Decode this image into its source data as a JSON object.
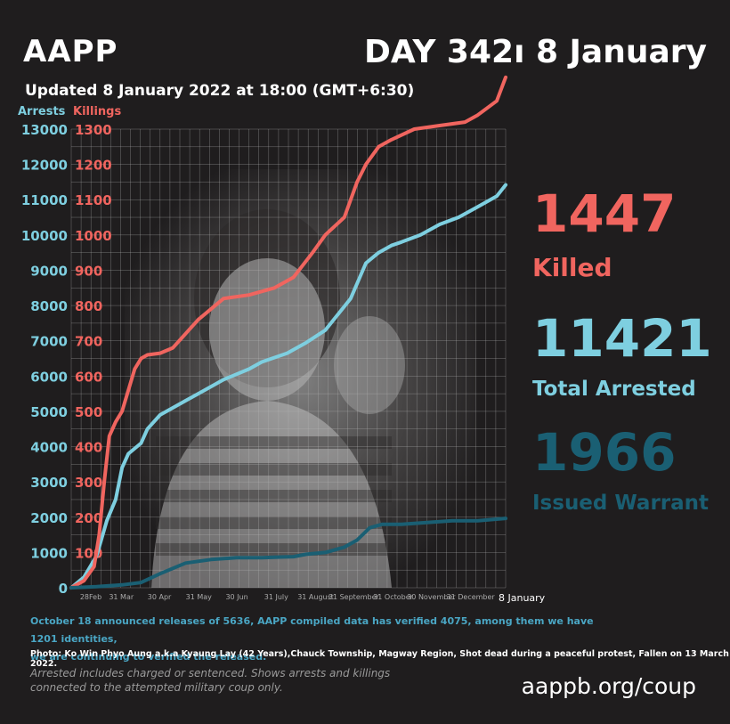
{
  "header": {
    "brand": "AAPP",
    "day": "DAY 342ı 8 January",
    "updated": "Updated  8 January 2022 at 18:00 (GMT+6:30)"
  },
  "stats": {
    "killed_value": "1447",
    "killed_label": "Killed",
    "arrested_value": "11421",
    "arrested_label": "Total Arrested",
    "warrant_value": "1966",
    "warrant_label": "Issued Warrant"
  },
  "notes": {
    "line1": "October 18 announced releases of 5636, AAPP compiled data has verified 4075, among them we have 1201 identities,",
    "line2": "we are continuing to verified the released.",
    "caption": "Photo: Ko Win Phyo Aung a.k.a Kyaung Lay (42 Years),Chauck Township, Magway Region, Shot dead during a peaceful protest, Fallen on 13 March 2022.",
    "footnote": "Arrested includes charged or sentenced. Shows arrests and killings connected to the attempted military coup only.",
    "site": "aappb.org/coup"
  },
  "colors": {
    "arrests": "#7ecfe0",
    "killings": "#f0655f",
    "warrant": "#1a5f73",
    "background": "#1f1d1e"
  },
  "chart_data": {
    "type": "line",
    "left_axis_label": "Arrests",
    "right_axis_label": "Killings",
    "arrests_ticks": [
      "0",
      "1000",
      "2000",
      "3000",
      "4000",
      "5000",
      "6000",
      "7000",
      "8000",
      "9000",
      "10000",
      "11000",
      "12000",
      "13000"
    ],
    "killings_ticks": [
      "100",
      "200",
      "300",
      "400",
      "500",
      "600",
      "700",
      "800",
      "900",
      "1000",
      "1100",
      "1200",
      "1300"
    ],
    "x_tick_labels": [
      "28Feb",
      "31 Mar",
      "30 Apr",
      "31 May",
      "30 Jun",
      "31 July",
      "31 August",
      "31 September",
      "31 October",
      "30 November",
      "31 December",
      "8 January"
    ],
    "x_range_days": [
      0,
      342
    ],
    "arrests_ylim": [
      0,
      13000
    ],
    "killings_ylim": [
      0,
      1300
    ],
    "grid": true,
    "series": [
      {
        "name": "Arrests",
        "axis": "left",
        "color": "#7ecfe0",
        "x_days": [
          0,
          10,
          20,
          28,
          35,
          40,
          45,
          55,
          60,
          70,
          90,
          100,
          120,
          140,
          150,
          170,
          185,
          200,
          220,
          232,
          242,
          252,
          260,
          275,
          290,
          305,
          320,
          335,
          342
        ],
        "values": [
          0,
          300,
          900,
          1900,
          2500,
          3400,
          3800,
          4100,
          4500,
          4900,
          5300,
          5500,
          5900,
          6200,
          6400,
          6650,
          6950,
          7300,
          8200,
          9200,
          9500,
          9700,
          9800,
          10000,
          10300,
          10500,
          10800,
          11100,
          11421
        ]
      },
      {
        "name": "Killings",
        "axis": "right",
        "color": "#f0655f",
        "x_days": [
          0,
          10,
          18,
          22,
          26,
          30,
          35,
          40,
          45,
          50,
          55,
          60,
          70,
          80,
          90,
          100,
          120,
          140,
          160,
          175,
          190,
          200,
          215,
          225,
          232,
          242,
          252,
          270,
          290,
          310,
          320,
          335,
          342
        ],
        "values": [
          0,
          20,
          60,
          150,
          300,
          430,
          470,
          500,
          560,
          620,
          650,
          660,
          665,
          680,
          720,
          760,
          820,
          830,
          850,
          880,
          950,
          1000,
          1050,
          1150,
          1200,
          1250,
          1270,
          1300,
          1310,
          1320,
          1340,
          1380,
          1447
        ]
      },
      {
        "name": "Issued Warrant",
        "axis": "left",
        "color": "#1a5f73",
        "x_days": [
          0,
          20,
          40,
          55,
          70,
          90,
          110,
          130,
          150,
          165,
          175,
          185,
          200,
          215,
          225,
          235,
          245,
          260,
          280,
          300,
          320,
          342
        ],
        "values": [
          0,
          30,
          80,
          150,
          400,
          700,
          800,
          850,
          850,
          870,
          880,
          950,
          1000,
          1150,
          1350,
          1700,
          1800,
          1800,
          1850,
          1900,
          1900,
          1966
        ]
      }
    ]
  }
}
